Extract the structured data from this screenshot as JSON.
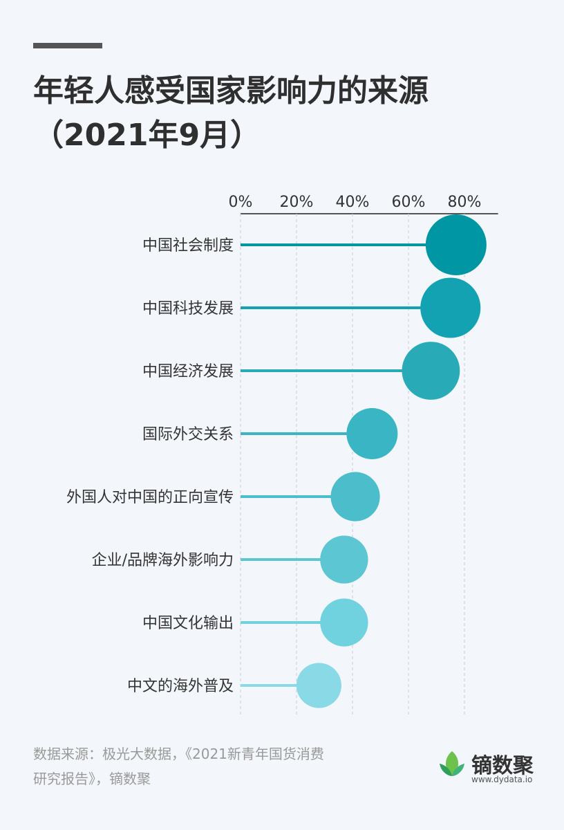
{
  "title_line1": "年轻人感受国家影响力的来源",
  "title_line2": "（2021年9月）",
  "source": {
    "line1": "数据来源：极光大数据，《2021新青年国货消费",
    "line2": "研究报告》，镝数聚"
  },
  "logo": {
    "name": "镝数聚",
    "url": "www.dydata.io",
    "icon": "leaf-icon"
  },
  "chart_data": {
    "type": "lollipop",
    "categories": [
      "中国社会制度",
      "中国科技发展",
      "中国经济发展",
      "国际外交关系",
      "外国人对中国的正向宣传",
      "企业/品牌海外影响力",
      "中国文化输出",
      "中文的海外普及"
    ],
    "values": [
      77,
      75,
      68,
      47,
      41,
      37,
      37,
      28
    ],
    "xlim": [
      0,
      92
    ],
    "xticks": [
      "0%",
      "20%",
      "40%",
      "60%",
      "80%"
    ],
    "xtick_values": [
      0,
      20,
      40,
      60,
      80
    ],
    "grid": true,
    "colors": [
      "#0096a3",
      "#13a2b1",
      "#28abb7",
      "#3ab5c3",
      "#4bbdcb",
      "#5cc6d3",
      "#70d2df",
      "#8ad9e7"
    ]
  }
}
